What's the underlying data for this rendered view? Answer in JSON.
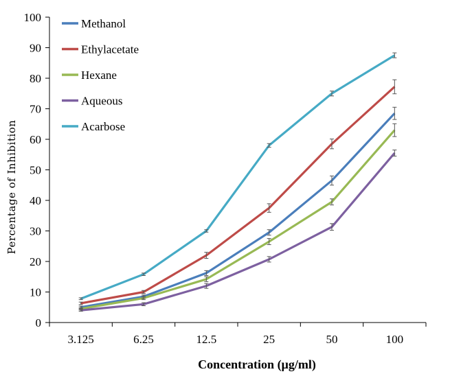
{
  "chart_data": {
    "type": "line",
    "title": "",
    "xlabel": "Concentration (µg/ml)",
    "ylabel": "Percentage of Inhibition",
    "categories": [
      "3.125",
      "6.25",
      "12.5",
      "25",
      "50",
      "100"
    ],
    "ylim": [
      0,
      100
    ],
    "yticks": [
      0,
      10,
      20,
      30,
      40,
      50,
      60,
      70,
      80,
      90,
      100
    ],
    "grid": false,
    "legend_position": "top-left",
    "series": [
      {
        "name": "Methanol",
        "color": "#4a7ebb",
        "values": [
          5,
          8.5,
          16.2,
          29.5,
          46.5,
          68.5
        ],
        "errors": [
          0.4,
          0.5,
          0.8,
          0.9,
          1.5,
          2.0
        ]
      },
      {
        "name": "Ethylacetate",
        "color": "#be4b48",
        "values": [
          6.3,
          10,
          22,
          37.5,
          58.5,
          77.2
        ],
        "errors": [
          0.4,
          0.5,
          1.0,
          1.4,
          1.6,
          2.3
        ]
      },
      {
        "name": "Hexane",
        "color": "#98b954",
        "values": [
          4.5,
          8,
          14.2,
          26.5,
          39.5,
          63
        ],
        "errors": [
          0.4,
          0.5,
          0.8,
          1.0,
          1.0,
          2.1
        ]
      },
      {
        "name": "Aqueous",
        "color": "#7d60a0",
        "values": [
          4,
          6,
          12,
          20.7,
          31.3,
          55.5
        ],
        "errors": [
          0.3,
          0.5,
          0.8,
          0.9,
          1.1,
          1.0
        ]
      },
      {
        "name": "Acarbose",
        "color": "#46aac5",
        "values": [
          7.8,
          15.8,
          30,
          58,
          75,
          87.5
        ],
        "errors": [
          0.3,
          0.4,
          0.4,
          0.6,
          0.8,
          0.8
        ]
      }
    ]
  }
}
